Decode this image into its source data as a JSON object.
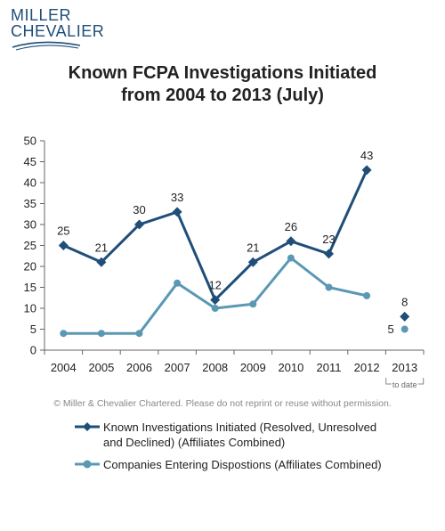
{
  "logo": {
    "line1": "MILLER",
    "line2": "CHEVALIER"
  },
  "title": {
    "line1": "Known FCPA Investigations Initiated",
    "line2": "from 2004 to 2013 (July)"
  },
  "copyright": "© Miller & Chevalier Chartered. Please do not reprint or reuse without permission.",
  "colors": {
    "dark": "#1f4e79",
    "light": "#5a98b3",
    "axis": "#666666",
    "grid": "#d9d9d9"
  },
  "chart_data": {
    "type": "line",
    "categories": [
      "2004",
      "2005",
      "2006",
      "2007",
      "2008",
      "2009",
      "2010",
      "2011",
      "2012",
      "2013"
    ],
    "ylim": [
      0,
      50
    ],
    "yticks": [
      0,
      5,
      10,
      15,
      20,
      25,
      30,
      35,
      40,
      45,
      50
    ],
    "category_note": "to date",
    "series": [
      {
        "name": "Known Investigations Initiated (Resolved, Unresolved and Declined) (Affiliates Combined)",
        "legend_lines": [
          "Known Investigations Initiated (Resolved, Unresolved",
          "and Declined) (Affiliates Combined)"
        ],
        "values": [
          25,
          21,
          30,
          33,
          12,
          21,
          26,
          23,
          43,
          8
        ],
        "labels_shown": [
          true,
          true,
          true,
          true,
          true,
          true,
          true,
          true,
          true,
          true
        ],
        "connected_through": 8,
        "marker": "diamond",
        "color": "#1f4e79"
      },
      {
        "name": "Companies Entering Dispostions (Affiliates Combined)",
        "legend_lines": [
          "Companies Entering Dispostions (Affiliates Combined)"
        ],
        "values": [
          4,
          4,
          4,
          16,
          10,
          11,
          22,
          15,
          13,
          5
        ],
        "labels_shown": [
          false,
          false,
          false,
          false,
          false,
          false,
          false,
          false,
          false,
          true
        ],
        "connected_through": 8,
        "marker": "circle",
        "color": "#5a98b3"
      }
    ]
  }
}
